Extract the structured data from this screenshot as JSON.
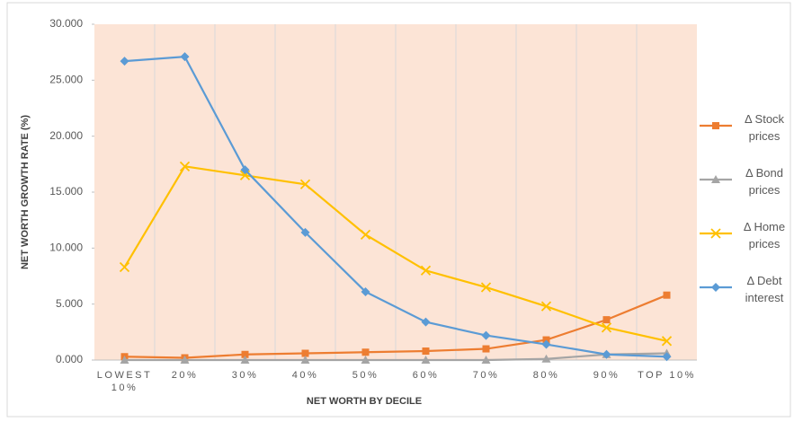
{
  "chart_data": {
    "type": "line",
    "x_label": "NET WORTH BY DECILE",
    "y_label": "NET WORTH GROWTH RATE (%)",
    "categories": [
      "LOWEST 10%",
      "20%",
      "30%",
      "40%",
      "50%",
      "60%",
      "70%",
      "80%",
      "90%",
      "TOP 10%"
    ],
    "series": [
      {
        "name": "Δ Stock prices",
        "color": "#ed7d31",
        "marker": "square",
        "values": [
          0.3,
          0.2,
          0.5,
          0.6,
          0.7,
          0.8,
          1.0,
          1.8,
          3.6,
          5.8
        ]
      },
      {
        "name": "Δ Bond prices",
        "color": "#a5a5a5",
        "marker": "triangle",
        "values": [
          0.0,
          0.0,
          0.0,
          0.0,
          0.0,
          0.0,
          0.0,
          0.1,
          0.5,
          0.6
        ]
      },
      {
        "name": "Δ Home prices",
        "color": "#ffc000",
        "marker": "x",
        "values": [
          8.3,
          17.3,
          16.5,
          15.7,
          11.2,
          8.0,
          6.5,
          4.8,
          2.9,
          1.7
        ]
      },
      {
        "name": "Δ Debt interest",
        "color": "#5b9bd5",
        "marker": "diamond",
        "values": [
          26.7,
          27.1,
          17.0,
          11.4,
          6.1,
          3.4,
          2.2,
          1.4,
          0.5,
          0.3
        ]
      }
    ],
    "ylim": [
      0,
      30
    ],
    "yticks": [
      {
        "value": 0,
        "label": "0.000"
      },
      {
        "value": 5,
        "label": "5.000"
      },
      {
        "value": 10,
        "label": "10.000"
      },
      {
        "value": 15,
        "label": "15.000"
      },
      {
        "value": 20,
        "label": "20.000"
      },
      {
        "value": 25,
        "label": "25.000"
      },
      {
        "value": 30,
        "label": "30.000"
      }
    ],
    "plot_background": "#fce4d6",
    "grid": "vertical",
    "legend": "right"
  }
}
